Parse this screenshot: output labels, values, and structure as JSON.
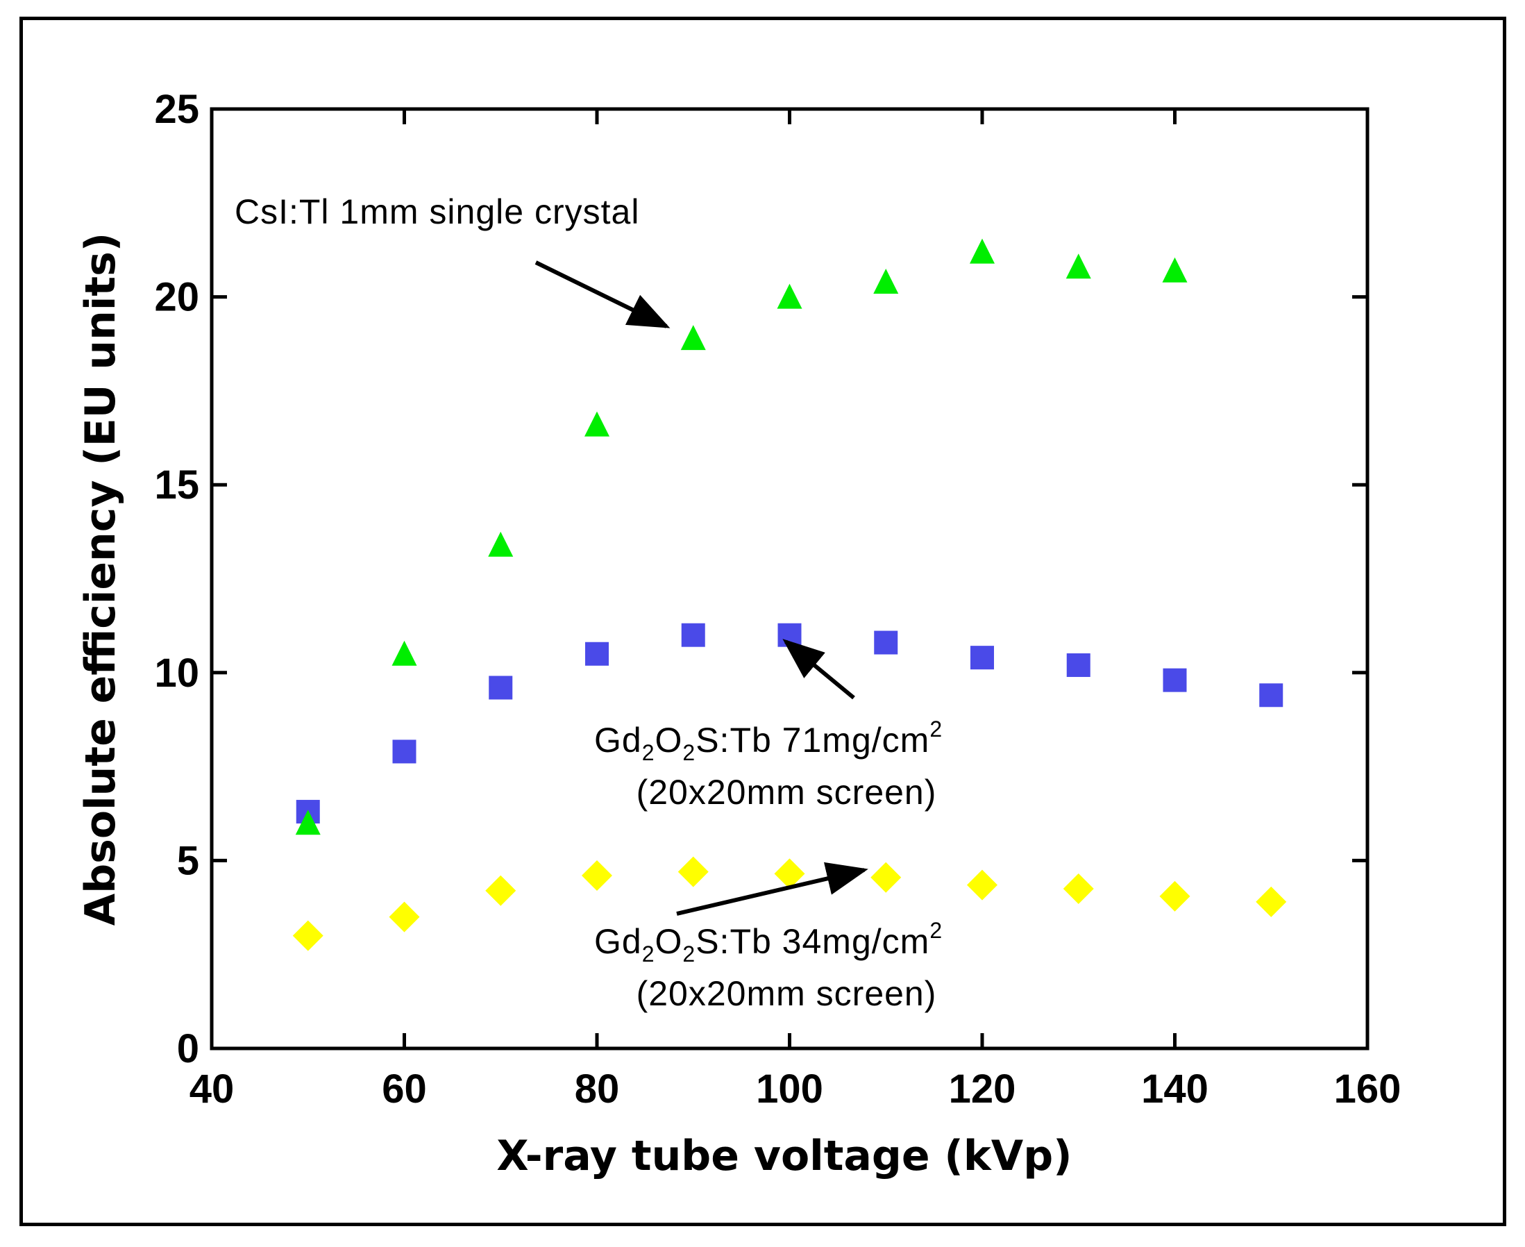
{
  "chart_data": {
    "type": "scatter",
    "title": "",
    "xlabel": "X-ray tube voltage (kVp)",
    "ylabel": "Absolute efficiency (EU units)",
    "xlim": [
      40,
      160
    ],
    "ylim": [
      0,
      25
    ],
    "xticks": [
      40,
      60,
      80,
      100,
      120,
      140,
      160
    ],
    "yticks": [
      0,
      5,
      10,
      15,
      20,
      25
    ],
    "grid": false,
    "series": [
      {
        "name": "CsI:Tl 1mm single crystal",
        "marker": "triangle",
        "color": "#00ee00",
        "x": [
          50,
          60,
          70,
          80,
          90,
          100,
          110,
          120,
          130,
          140
        ],
        "y": [
          6.0,
          10.5,
          13.4,
          16.6,
          18.9,
          20.0,
          20.4,
          21.2,
          20.8,
          20.7
        ]
      },
      {
        "name": "Gd2O2S:Tb 71mg/cm2 (20x20mm screen)",
        "marker": "square",
        "color": "#4a4ae8",
        "x": [
          50,
          60,
          70,
          80,
          90,
          100,
          110,
          120,
          130,
          140,
          150
        ],
        "y": [
          6.3,
          7.9,
          9.6,
          10.5,
          11.0,
          11.0,
          10.8,
          10.4,
          10.2,
          9.8,
          9.4
        ]
      },
      {
        "name": "Gd2O2S:Tb 34mg/cm2 (20x20mm screen)",
        "marker": "diamond",
        "color": "#ffff00",
        "x": [
          50,
          60,
          70,
          80,
          90,
          100,
          110,
          120,
          130,
          140,
          150
        ],
        "y": [
          3.0,
          3.5,
          4.2,
          4.6,
          4.7,
          4.65,
          4.55,
          4.35,
          4.25,
          4.05,
          3.9
        ]
      }
    ],
    "annotations": [
      {
        "id": "csi",
        "text": "CsI:Tl 1mm single crystal"
      },
      {
        "id": "gd71",
        "pre": "Gd",
        "sub1": "2",
        "mid": "O",
        "sub2": "2",
        "post": "S:Tb 71mg/cm",
        "sup": "2",
        "line2": "(20x20mm screen)"
      },
      {
        "id": "gd34",
        "pre": "Gd",
        "sub1": "2",
        "mid": "O",
        "sub2": "2",
        "post": "S:Tb 34mg/cm",
        "sup": "2",
        "line2": "(20x20mm screen)"
      }
    ]
  }
}
